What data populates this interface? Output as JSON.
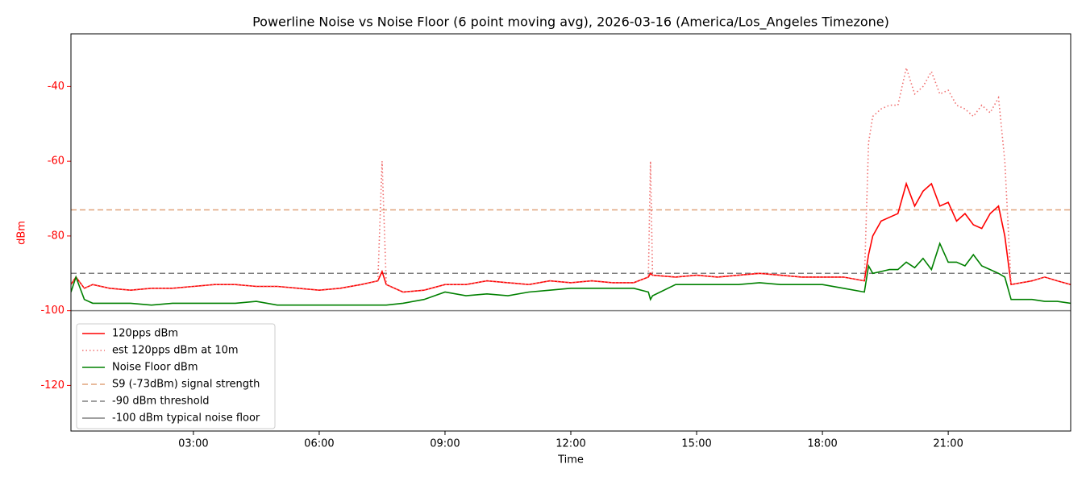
{
  "chart_data": {
    "type": "line",
    "title": "Powerline Noise vs Noise Floor (6 point moving avg), 2026-03-16 (America/Los_Angeles Timezone)",
    "xlabel": "Time",
    "ylabel": "dBm",
    "x": [
      0.08,
      0.2,
      0.4,
      0.6,
      1,
      1.5,
      2,
      2.5,
      3,
      3.5,
      4,
      4.5,
      5,
      5.5,
      6,
      6.5,
      7,
      7.4,
      7.5,
      7.6,
      8,
      8.5,
      9,
      9.5,
      10,
      10.5,
      11,
      11.5,
      12,
      12.5,
      13,
      13.5,
      13.85,
      13.9,
      13.95,
      14.5,
      15,
      15.5,
      16,
      16.5,
      17,
      17.5,
      18,
      18.5,
      19,
      19.1,
      19.2,
      19.4,
      19.6,
      19.8,
      20,
      20.2,
      20.4,
      20.6,
      20.8,
      21,
      21.2,
      21.4,
      21.6,
      21.8,
      22,
      22.2,
      22.35,
      22.5,
      23,
      23.3,
      23.6,
      23.92
    ],
    "series": [
      {
        "name": "120pps dBm",
        "color": "#ff0000",
        "style": "solid",
        "values": [
          -93,
          -91,
          -94,
          -93,
          -94,
          -94.5,
          -94,
          -94,
          -93.5,
          -93,
          -93,
          -93.5,
          -93.5,
          -94,
          -94.5,
          -94,
          -93,
          -92,
          -89.5,
          -93,
          -95,
          -94.5,
          -93,
          -93,
          -92,
          -92.5,
          -93,
          -92,
          -92.5,
          -92,
          -92.5,
          -92.5,
          -91,
          -90,
          -90.5,
          -91,
          -90.5,
          -91,
          -90.5,
          -90,
          -90.5,
          -91,
          -91,
          -91,
          -92,
          -85,
          -80,
          -76,
          -75,
          -74,
          -66,
          -72,
          -68,
          -66,
          -72,
          -71,
          -76,
          -74,
          -77,
          -78,
          -74,
          -72,
          -80,
          -93,
          -92,
          -91,
          -92,
          -93
        ]
      },
      {
        "name": "est 120pps dBm at 10m",
        "color": "#f07070",
        "style": "dotted",
        "values": [
          -93,
          -91,
          -94,
          -93,
          -94,
          -94.5,
          -94,
          -94,
          -93.5,
          -93,
          -93,
          -93.5,
          -93.5,
          -94,
          -94.5,
          -94,
          -93,
          -92,
          -60,
          -93,
          -95,
          -94.5,
          -93,
          -93,
          -92,
          -92.5,
          -93,
          -92,
          -92.5,
          -92,
          -92.5,
          -92.5,
          -91,
          -60,
          -90.5,
          -91,
          -90.5,
          -91,
          -90.5,
          -90,
          -90.5,
          -91,
          -91,
          -91,
          -92,
          -55,
          -48,
          -46,
          -45,
          -45,
          -35,
          -42,
          -40,
          -36,
          -42,
          -41,
          -45,
          -46,
          -48,
          -45,
          -47,
          -43,
          -60,
          -93,
          -92,
          -91,
          -92,
          -93
        ]
      },
      {
        "name": "Noise Floor dBm",
        "color": "#008000",
        "style": "solid",
        "values": [
          -95,
          -91,
          -97,
          -98,
          -98,
          -98,
          -98.5,
          -98,
          -98,
          -98,
          -98,
          -97.5,
          -98.5,
          -98.5,
          -98.5,
          -98.5,
          -98.5,
          -98.5,
          -98.5,
          -98.5,
          -98,
          -97,
          -95,
          -96,
          -95.5,
          -96,
          -95,
          -94.5,
          -94,
          -94,
          -94,
          -94,
          -95,
          -97,
          -96,
          -93,
          -93,
          -93,
          -93,
          -92.5,
          -93,
          -93,
          -93,
          -94,
          -95,
          -88,
          -90,
          -89.5,
          -89,
          -89,
          -87,
          -88.5,
          -86,
          -89,
          -82,
          -87,
          -87,
          -88,
          -85,
          -88,
          -89,
          -90,
          -91,
          -97,
          -97,
          -97.5,
          -97.5,
          -98
        ]
      }
    ],
    "reference_lines": [
      {
        "name": "S9 (-73dBm) signal strength",
        "value": -73,
        "color": "#e0a37c",
        "style": "dashed"
      },
      {
        "name": "-90 dBm threshold",
        "value": -90,
        "color": "#808080",
        "style": "dashed"
      },
      {
        "name": "-100 dBm typical noise floor",
        "value": -100,
        "color": "#808080",
        "style": "solid"
      }
    ],
    "xlim": [
      0.08,
      23.92
    ],
    "xticks": [
      {
        "value": 3,
        "label": "03:00"
      },
      {
        "value": 6,
        "label": "06:00"
      },
      {
        "value": 9,
        "label": "09:00"
      },
      {
        "value": 12,
        "label": "12:00"
      },
      {
        "value": 15,
        "label": "15:00"
      },
      {
        "value": 18,
        "label": "18:00"
      },
      {
        "value": 21,
        "label": "21:00"
      }
    ],
    "ylim": [
      -132.2,
      -25.9
    ],
    "yticks": [
      -120,
      -100,
      -80,
      -60,
      -40
    ],
    "ytick_color": "#ff0000",
    "legend": "lower left"
  }
}
